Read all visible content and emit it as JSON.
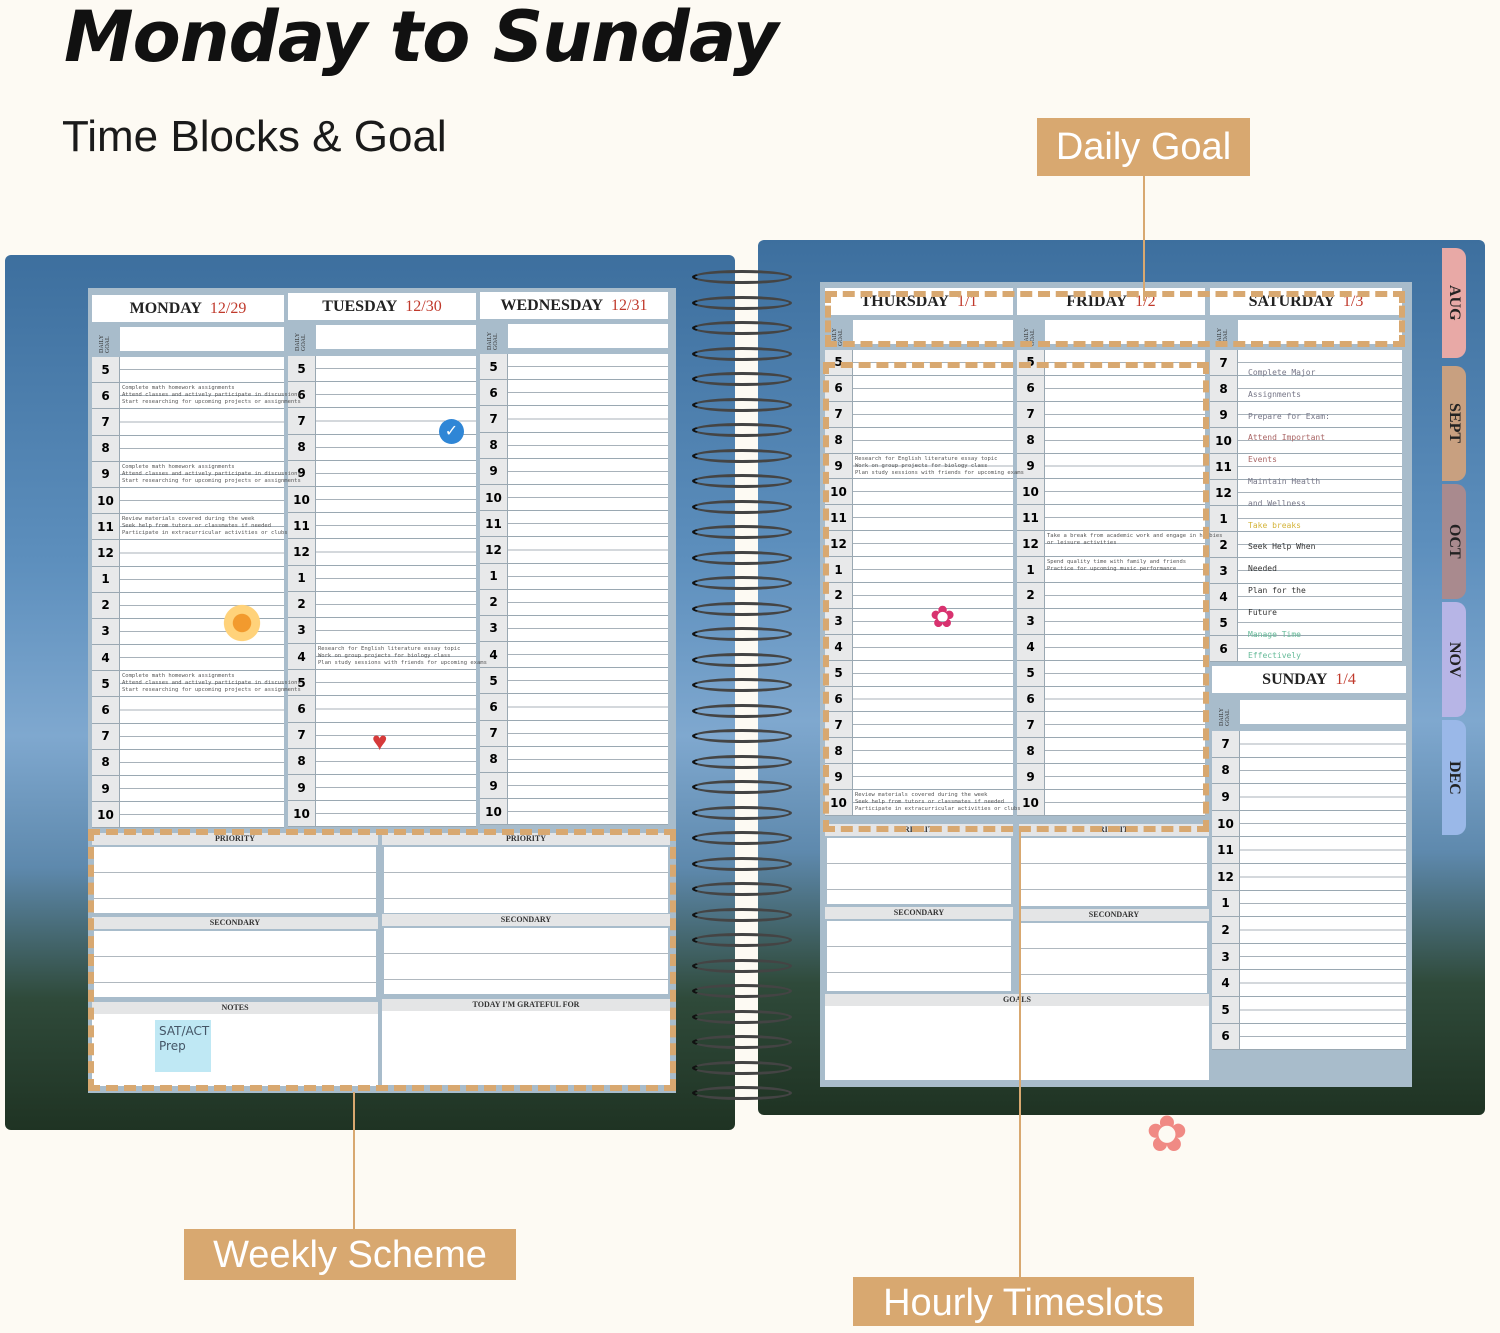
{
  "header": {
    "title": "Monday to Sunday",
    "subtitle": "Time Blocks & Goal"
  },
  "callouts": {
    "daily_goal": "Daily Goal",
    "weekly_scheme": "Weekly Scheme",
    "hourly_timeslots": "Hourly Timeslots"
  },
  "colors": {
    "accent": "#d8a870",
    "date": "#c0392b",
    "paper": "#a8bccb",
    "background": "#fdfaf3"
  },
  "tabs": [
    "AUG",
    "SEPT",
    "OCT",
    "NOV",
    "DEC"
  ],
  "daily_goal_label": "DAILY GOAL",
  "days": [
    {
      "name": "MONDAY",
      "date": "12/29",
      "hours": [
        "5",
        "6",
        "7",
        "8",
        "9",
        "10",
        "11",
        "12",
        "1",
        "2",
        "3",
        "4",
        "5",
        "6",
        "7",
        "8",
        "9",
        "10"
      ],
      "notes": [
        {
          "slot": 1,
          "lines": [
            "Complete math homework assignments",
            "Attend classes and actively participate in discussions",
            "Start researching for upcoming projects or assignments"
          ]
        },
        {
          "slot": 4,
          "lines": [
            "Complete math homework assignments",
            "Attend classes and actively participate in discussions",
            "Start researching for upcoming projects or assignments"
          ]
        },
        {
          "slot": 6,
          "lines": [
            "Review materials covered during the week",
            "Seek help from tutors or classmates if needed",
            "Participate in extracurricular activities or clubs"
          ]
        },
        {
          "slot": 12,
          "lines": [
            "Complete math homework assignments",
            "Attend classes and actively participate in discussions",
            "Start researching for upcoming projects or assignments"
          ]
        }
      ]
    },
    {
      "name": "TUESDAY",
      "date": "12/30",
      "hours": [
        "5",
        "6",
        "7",
        "8",
        "9",
        "10",
        "11",
        "12",
        "1",
        "2",
        "3",
        "4",
        "5",
        "6",
        "7",
        "8",
        "9",
        "10"
      ],
      "notes": [
        {
          "slot": 11,
          "lines": [
            "Research for English literature essay topic",
            "Work on group projects for biology class",
            "Plan study sessions with friends for upcoming exams"
          ]
        }
      ]
    },
    {
      "name": "WEDNESDAY",
      "date": "12/31",
      "hours": [
        "5",
        "6",
        "7",
        "8",
        "9",
        "10",
        "11",
        "12",
        "1",
        "2",
        "3",
        "4",
        "5",
        "6",
        "7",
        "8",
        "9",
        "10"
      ],
      "notes": []
    },
    {
      "name": "THURSDAY",
      "date": "1/1",
      "hours": [
        "5",
        "6",
        "7",
        "8",
        "9",
        "10",
        "11",
        "12",
        "1",
        "2",
        "3",
        "4",
        "5",
        "6",
        "7",
        "8",
        "9",
        "10"
      ],
      "notes": [
        {
          "slot": 4,
          "lines": [
            "Research for English literature essay topic",
            "Work on group projects for biology class",
            "Plan study sessions with friends for upcoming exams"
          ]
        },
        {
          "slot": 17,
          "lines": [
            "Review materials covered during the week",
            "Seek help from tutors or classmates if needed",
            "Participate in extracurricular activities or clubs"
          ]
        }
      ]
    },
    {
      "name": "FRIDAY",
      "date": "1/2",
      "hours": [
        "5",
        "6",
        "7",
        "8",
        "9",
        "10",
        "11",
        "12",
        "1",
        "2",
        "3",
        "4",
        "5",
        "6",
        "7",
        "8",
        "9",
        "10"
      ],
      "notes": [
        {
          "slot": 7,
          "lines": [
            "Take a break from academic work and engage in hobbies",
            "or leisure activities"
          ]
        },
        {
          "slot": 8,
          "lines": [
            "Spend quality time with family and friends",
            "Practice for upcoming music performance"
          ]
        }
      ]
    },
    {
      "name": "SATURDAY",
      "date": "1/3",
      "hours": [
        "7",
        "8",
        "9",
        "10",
        "11",
        "12",
        "1",
        "2",
        "3",
        "4",
        "5",
        "6"
      ],
      "list": [
        "Complete Major",
        "Assignments",
        "Prepare for Exam:",
        "Attend Important",
        "Events",
        "Maintain Health",
        "and Wellness",
        "Take breaks",
        "Seek Help When",
        "Needed",
        "Plan for the",
        "Future",
        "Manage Time",
        "Effectively"
      ]
    },
    {
      "name": "SUNDAY",
      "date": "1/4",
      "hours": [
        "7",
        "8",
        "9",
        "10",
        "11",
        "12",
        "1",
        "2",
        "3",
        "4",
        "5",
        "6"
      ],
      "notes": []
    }
  ],
  "sections": {
    "priority": "PRIORITY",
    "secondary": "SECONDARY",
    "notes": "NOTES",
    "grateful": "TODAY I'M GRATEFUL FOR",
    "goals": "GOALS"
  },
  "sticky_note": {
    "line1": "SAT/ACT",
    "line2": "Prep"
  }
}
